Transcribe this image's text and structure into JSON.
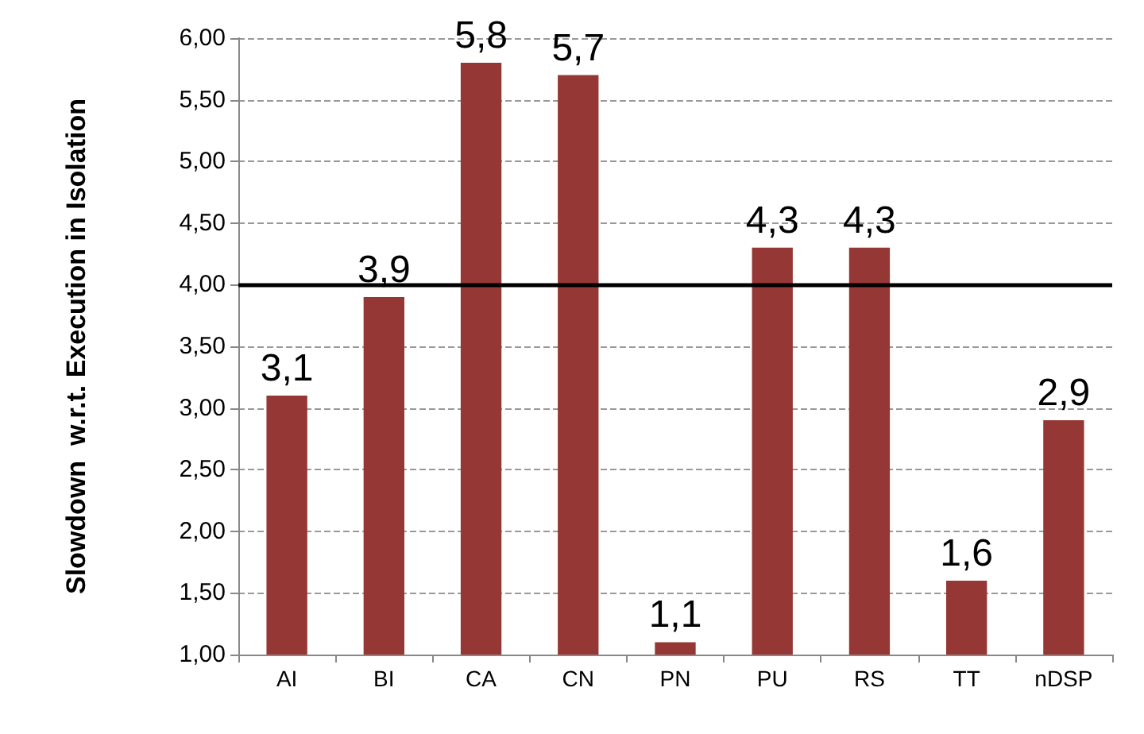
{
  "chart_data": {
    "type": "bar",
    "ylabel": "Slowdown  w.r.t. Execution in Isolation",
    "categories": [
      "AI",
      "BI",
      "CA",
      "CN",
      "PN",
      "PU",
      "RS",
      "TT",
      "nDSP"
    ],
    "values": [
      3.1,
      3.9,
      5.8,
      5.7,
      1.1,
      4.3,
      4.3,
      1.6,
      2.9
    ],
    "value_labels": [
      "3,1",
      "3,9",
      "5,8",
      "5,7",
      "1,1",
      "4,3",
      "4,3",
      "1,6",
      "2,9"
    ],
    "color": "#953735",
    "ylim": [
      1,
      6
    ],
    "yticks": [
      {
        "value": 1,
        "label": "1,00"
      },
      {
        "value": 1.5,
        "label": "1,50"
      },
      {
        "value": 2,
        "label": "2,00"
      },
      {
        "value": 2.5,
        "label": "2,50"
      },
      {
        "value": 3,
        "label": "3,00"
      },
      {
        "value": 3.5,
        "label": "3,50"
      },
      {
        "value": 4,
        "label": "4,00"
      },
      {
        "value": 4.5,
        "label": "4,50"
      },
      {
        "value": 5,
        "label": "5,00"
      },
      {
        "value": 5.5,
        "label": "5,50"
      },
      {
        "value": 6,
        "label": "6,00"
      }
    ],
    "ref_lines": [
      {
        "axis": "y",
        "value": 4,
        "color": "#000000"
      }
    ],
    "grid": "y"
  }
}
